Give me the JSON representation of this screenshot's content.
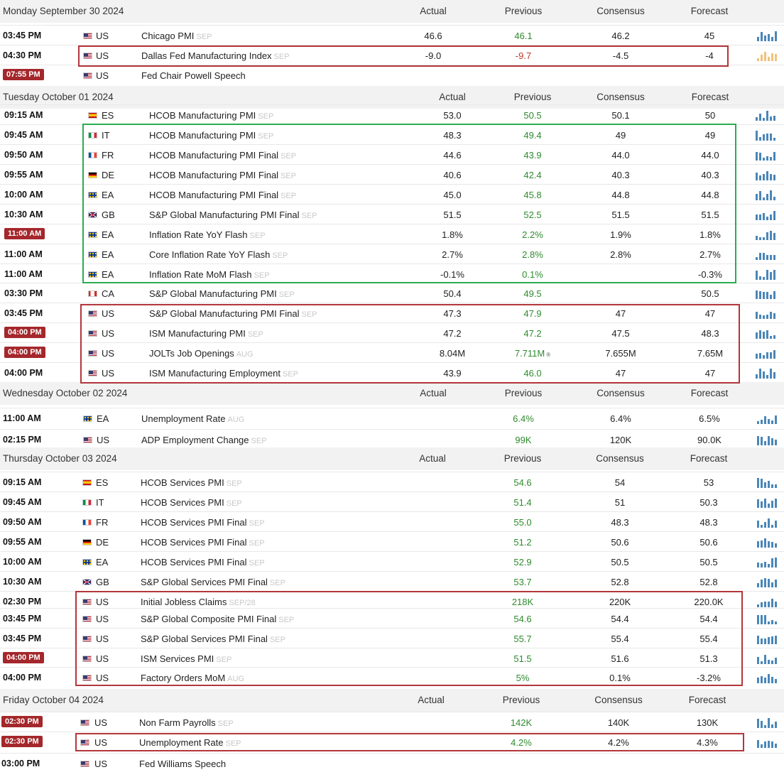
{
  "headers": {
    "actual": "Actual",
    "previous": "Previous",
    "consensus": "Consensus",
    "forecast": "Forecast"
  },
  "colors": {
    "highlight_time": "#a4272b",
    "previous_text": "#2e8b2e",
    "chart_bar": "#4a86b8",
    "chart_bar_alt": "#f0c27a",
    "red_box": "#b3363b",
    "green_box": "#2bab4f"
  },
  "days": [
    {
      "label": "Monday September 30 2024",
      "rows": [
        {
          "time": "03:45 PM",
          "hot": false,
          "flag": "us-flag",
          "country": "US",
          "event": "Chicago PMI",
          "period": "SEP",
          "actual": "46.6",
          "previous": "46.1",
          "consensus": "46.2",
          "forecast": "45"
        },
        {
          "time": "04:30 PM",
          "hot": false,
          "flag": "us-flag",
          "country": "US",
          "event": "Dallas Fed Manufacturing Index",
          "period": "SEP",
          "actual": "-9.0",
          "previous": "-9.7",
          "previous_color": "#c0392b",
          "consensus": "-4.5",
          "forecast": "-4",
          "alt_chart": true
        },
        {
          "time": "07:55 PM",
          "hot": true,
          "flag": "us-flag",
          "country": "US",
          "event": "Fed Chair Powell Speech",
          "period": "",
          "actual": "",
          "previous": "",
          "consensus": "",
          "forecast": "",
          "no_chart": true
        }
      ]
    },
    {
      "label": "Tuesday October 01 2024",
      "rows": [
        {
          "time": "09:15 AM",
          "hot": false,
          "flag": "es-flag",
          "country": "ES",
          "event": "HCOB Manufacturing PMI",
          "period": "SEP",
          "actual": "53.0",
          "previous": "50.5",
          "consensus": "50.1",
          "forecast": "50"
        },
        {
          "time": "09:45 AM",
          "hot": false,
          "flag": "it-flag",
          "country": "IT",
          "event": "HCOB Manufacturing PMI",
          "period": "SEP",
          "actual": "48.3",
          "previous": "49.4",
          "consensus": "49",
          "forecast": "49"
        },
        {
          "time": "09:50 AM",
          "hot": false,
          "flag": "fr-flag",
          "country": "FR",
          "event": "HCOB Manufacturing PMI Final",
          "period": "SEP",
          "actual": "44.6",
          "previous": "43.9",
          "consensus": "44.0",
          "forecast": "44.0"
        },
        {
          "time": "09:55 AM",
          "hot": false,
          "flag": "de-flag",
          "country": "DE",
          "event": "HCOB Manufacturing PMI Final",
          "period": "SEP",
          "actual": "40.6",
          "previous": "42.4",
          "consensus": "40.3",
          "forecast": "40.3"
        },
        {
          "time": "10:00 AM",
          "hot": false,
          "flag": "eu-flag",
          "country": "EA",
          "event": "HCOB Manufacturing PMI Final",
          "period": "SEP",
          "actual": "45.0",
          "previous": "45.8",
          "consensus": "44.8",
          "forecast": "44.8"
        },
        {
          "time": "10:30 AM",
          "hot": false,
          "flag": "gb-flag",
          "country": "GB",
          "event": "S&P Global Manufacturing PMI Final",
          "period": "SEP",
          "actual": "51.5",
          "previous": "52.5",
          "consensus": "51.5",
          "forecast": "51.5"
        },
        {
          "time": "11:00 AM",
          "hot": true,
          "flag": "eu-flag",
          "country": "EA",
          "event": "Inflation Rate YoY Flash",
          "period": "SEP",
          "actual": "1.8%",
          "previous": "2.2%",
          "consensus": "1.9%",
          "forecast": "1.8%"
        },
        {
          "time": "11:00 AM",
          "hot": false,
          "flag": "eu-flag",
          "country": "EA",
          "event": "Core Inflation Rate YoY Flash",
          "period": "SEP",
          "actual": "2.7%",
          "previous": "2.8%",
          "consensus": "2.8%",
          "forecast": "2.7%"
        },
        {
          "time": "11:00 AM",
          "hot": false,
          "flag": "eu-flag",
          "country": "EA",
          "event": "Inflation Rate MoM Flash",
          "period": "SEP",
          "actual": "-0.1%",
          "previous": "0.1%",
          "consensus": "",
          "forecast": "-0.3%"
        },
        {
          "time": "03:30 PM",
          "hot": false,
          "flag": "ca-flag",
          "country": "CA",
          "event": "S&P Global Manufacturing PMI",
          "period": "SEP",
          "actual": "50.4",
          "previous": "49.5",
          "consensus": "",
          "forecast": "50.5"
        },
        {
          "time": "03:45 PM",
          "hot": false,
          "flag": "us-flag",
          "country": "US",
          "event": "S&P Global Manufacturing PMI Final",
          "period": "SEP",
          "actual": "47.3",
          "previous": "47.9",
          "consensus": "47",
          "forecast": "47"
        },
        {
          "time": "04:00 PM",
          "hot": true,
          "flag": "us-flag",
          "country": "US",
          "event": "ISM Manufacturing PMI",
          "period": "SEP",
          "actual": "47.2",
          "previous": "47.2",
          "consensus": "47.5",
          "forecast": "48.3"
        },
        {
          "time": "04:00 PM",
          "hot": true,
          "flag": "us-flag",
          "country": "US",
          "event": "JOLTs Job Openings",
          "period": "AUG",
          "actual": "8.04M",
          "previous": "7.711M",
          "previous_mark": "®",
          "consensus": "7.655M",
          "forecast": "7.65M"
        },
        {
          "time": "04:00 PM",
          "hot": false,
          "flag": "us-flag",
          "country": "US",
          "event": "ISM Manufacturing Employment",
          "period": "SEP",
          "actual": "43.9",
          "previous": "46.0",
          "consensus": "47",
          "forecast": "47"
        }
      ]
    },
    {
      "label": "Wednesday October 02 2024",
      "rows": [
        {
          "time": "11:00 AM",
          "hot": false,
          "flag": "eu-flag",
          "country": "EA",
          "event": "Unemployment Rate",
          "period": "AUG",
          "actual": "",
          "previous": "6.4%",
          "consensus": "6.4%",
          "forecast": "6.5%"
        },
        {
          "time": "02:15 PM",
          "hot": false,
          "flag": "us-flag",
          "country": "US",
          "event": "ADP Employment Change",
          "period": "SEP",
          "actual": "",
          "previous": "99K",
          "consensus": "120K",
          "forecast": "90.0K"
        }
      ]
    },
    {
      "label": "Thursday October 03 2024",
      "rows": [
        {
          "time": "09:15 AM",
          "hot": false,
          "flag": "es-flag",
          "country": "ES",
          "event": "HCOB Services PMI",
          "period": "SEP",
          "actual": "",
          "previous": "54.6",
          "consensus": "54",
          "forecast": "53"
        },
        {
          "time": "09:45 AM",
          "hot": false,
          "flag": "it-flag",
          "country": "IT",
          "event": "HCOB Services PMI",
          "period": "SEP",
          "actual": "",
          "previous": "51.4",
          "consensus": "51",
          "forecast": "50.3"
        },
        {
          "time": "09:50 AM",
          "hot": false,
          "flag": "fr-flag",
          "country": "FR",
          "event": "HCOB Services PMI Final",
          "period": "SEP",
          "actual": "",
          "previous": "55.0",
          "consensus": "48.3",
          "forecast": "48.3"
        },
        {
          "time": "09:55 AM",
          "hot": false,
          "flag": "de-flag",
          "country": "DE",
          "event": "HCOB Services PMI Final",
          "period": "SEP",
          "actual": "",
          "previous": "51.2",
          "consensus": "50.6",
          "forecast": "50.6"
        },
        {
          "time": "10:00 AM",
          "hot": false,
          "flag": "eu-flag",
          "country": "EA",
          "event": "HCOB Services PMI Final",
          "period": "SEP",
          "actual": "",
          "previous": "52.9",
          "consensus": "50.5",
          "forecast": "50.5"
        },
        {
          "time": "10:30 AM",
          "hot": false,
          "flag": "gb-flag",
          "country": "GB",
          "event": "S&P Global Services PMI Final",
          "period": "SEP",
          "actual": "",
          "previous": "53.7",
          "consensus": "52.8",
          "forecast": "52.8"
        },
        {
          "time": "02:30 PM",
          "hot": false,
          "flag": "us-flag",
          "country": "US",
          "event": "Initial Jobless Claims",
          "period": "SEP/28",
          "actual": "",
          "previous": "218K",
          "consensus": "220K",
          "forecast": "220.0K"
        },
        {
          "time": "03:45 PM",
          "hot": false,
          "flag": "us-flag",
          "country": "US",
          "event": "S&P Global Composite PMI Final",
          "period": "SEP",
          "actual": "",
          "previous": "54.6",
          "consensus": "54.4",
          "forecast": "54.4"
        },
        {
          "time": "03:45 PM",
          "hot": false,
          "flag": "us-flag",
          "country": "US",
          "event": "S&P Global Services PMI Final",
          "period": "SEP",
          "actual": "",
          "previous": "55.7",
          "consensus": "55.4",
          "forecast": "55.4"
        },
        {
          "time": "04:00 PM",
          "hot": true,
          "flag": "us-flag",
          "country": "US",
          "event": "ISM Services PMI",
          "period": "SEP",
          "actual": "",
          "previous": "51.5",
          "consensus": "51.6",
          "forecast": "51.3"
        },
        {
          "time": "04:00 PM",
          "hot": false,
          "flag": "us-flag",
          "country": "US",
          "event": "Factory Orders MoM",
          "period": "AUG",
          "actual": "",
          "previous": "5%",
          "consensus": "0.1%",
          "forecast": "-3.2%"
        }
      ]
    },
    {
      "label": "Friday October 04 2024",
      "rows": [
        {
          "time": "02:30 PM",
          "hot": true,
          "flag": "us-flag",
          "country": "US",
          "event": "Non Farm Payrolls",
          "period": "SEP",
          "actual": "",
          "previous": "142K",
          "consensus": "140K",
          "forecast": "130K"
        },
        {
          "time": "02:30 PM",
          "hot": true,
          "flag": "us-flag",
          "country": "US",
          "event": "Unemployment Rate",
          "period": "SEP",
          "actual": "",
          "previous": "4.2%",
          "consensus": "4.2%",
          "forecast": "4.3%"
        },
        {
          "time": "03:00 PM",
          "hot": false,
          "flag": "us-flag",
          "country": "US",
          "event": "Fed Williams Speech",
          "period": "",
          "actual": "",
          "previous": "",
          "consensus": "",
          "forecast": "",
          "no_chart": true
        }
      ]
    }
  ]
}
